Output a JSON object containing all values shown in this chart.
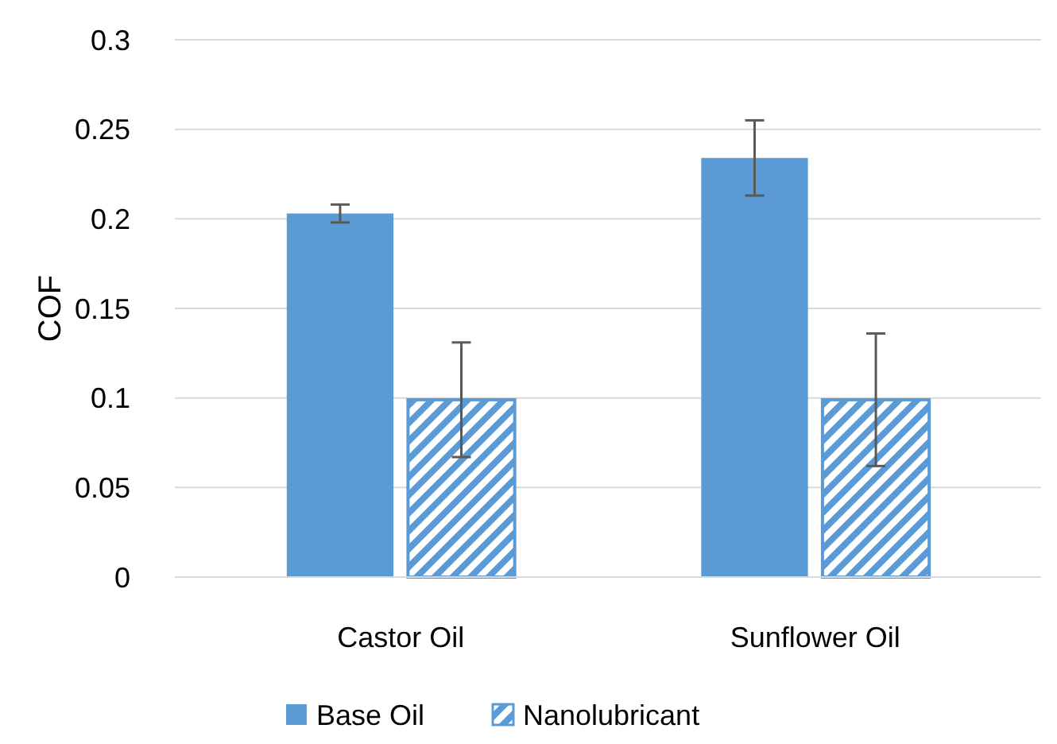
{
  "chart_data": {
    "type": "bar",
    "ylabel": "COF",
    "categories": [
      "Castor Oil",
      "Sunflower Oil"
    ],
    "series": [
      {
        "name": "Base Oil",
        "color": "#5b9bd5",
        "values": [
          0.203,
          0.234
        ],
        "errors": [
          0.005,
          0.021
        ]
      },
      {
        "name": "Nanolubricant",
        "color": "#5b9bd5",
        "values": [
          0.099,
          0.099
        ],
        "errors": [
          0.032,
          0.037
        ]
      }
    ],
    "ylim": [
      0,
      0.3
    ],
    "yticks": [
      0,
      0.05,
      0.1,
      0.15,
      0.2,
      0.25,
      0.3
    ],
    "grid": "y",
    "legend": "bottom"
  }
}
